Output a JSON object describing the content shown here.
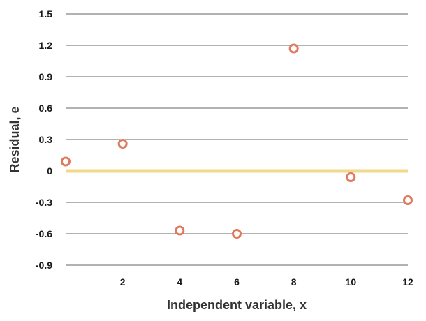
{
  "chart_data": {
    "type": "scatter",
    "xlabel": "Independent variable, x",
    "ylabel": "Residual, e",
    "xlim": [
      0,
      12
    ],
    "ylim": [
      -0.9,
      1.5
    ],
    "x_ticks": [
      2,
      4,
      6,
      8,
      10,
      12
    ],
    "x_tick_labels": [
      "2",
      "4",
      "6",
      "8",
      "10",
      "12"
    ],
    "y_ticks": [
      1.5,
      1.2,
      0.9,
      0.6,
      0.3,
      0,
      -0.3,
      -0.6,
      -0.9
    ],
    "y_tick_labels": [
      "1.5",
      "1.2",
      "0.9",
      "0.6",
      "0.3",
      "0",
      "-0.3",
      "-0.6",
      "-0.9"
    ],
    "grid": true,
    "zero_line": 0,
    "series": [
      {
        "x": [
          0,
          2,
          4,
          6,
          8,
          10,
          12
        ],
        "y": [
          0.09,
          0.26,
          -0.57,
          -0.6,
          1.17,
          -0.06,
          -0.28
        ]
      }
    ],
    "colors": {
      "marker_stroke": "#e07a5f",
      "marker_fill": "#ffffff",
      "zero_line": "#f0d98a",
      "grid": "#666666"
    }
  }
}
